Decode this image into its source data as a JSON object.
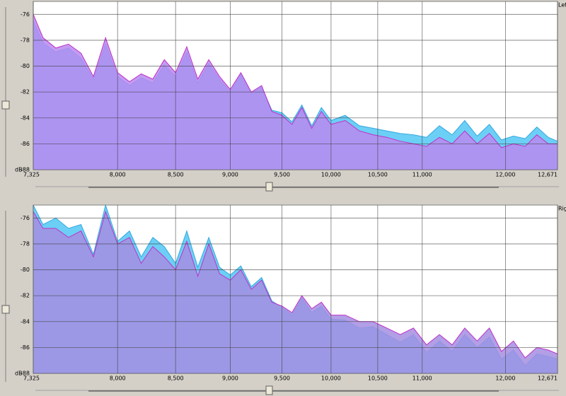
{
  "chart_data": [
    {
      "type": "area",
      "title": "Left",
      "ylabel": "dB",
      "xscale": "log",
      "grid": true,
      "xlim": [
        7325,
        12671
      ],
      "ylim": [
        -88,
        -75
      ],
      "xticks": [
        {
          "value": 7325,
          "label": "7,325"
        },
        {
          "value": 8000,
          "label": "8,000"
        },
        {
          "value": 8500,
          "label": "8,500"
        },
        {
          "value": 9000,
          "label": "9,000"
        },
        {
          "value": 9500,
          "label": "9,500"
        },
        {
          "value": 10000,
          "label": "10,000"
        },
        {
          "value": 10500,
          "label": "10,500"
        },
        {
          "value": 11000,
          "label": "11,000"
        },
        {
          "value": 12000,
          "label": "12,000"
        },
        {
          "value": 12671,
          "label": "12,671"
        }
      ],
      "yticks": [
        -88,
        -86,
        -84,
        -82,
        -80,
        -78,
        -76
      ],
      "x": [
        7325,
        7400,
        7500,
        7600,
        7700,
        7800,
        7900,
        8000,
        8100,
        8200,
        8300,
        8400,
        8500,
        8600,
        8700,
        8800,
        8900,
        9000,
        9100,
        9200,
        9300,
        9400,
        9500,
        9600,
        9700,
        9800,
        9900,
        10000,
        10150,
        10300,
        10450,
        10600,
        10750,
        10900,
        11050,
        11200,
        11350,
        11500,
        11650,
        11800,
        11950,
        12100,
        12250,
        12400,
        12550,
        12671
      ],
      "series": [
        {
          "color": "#35a8e0",
          "fill": "#6ccff5",
          "values": [
            -76.5,
            -78.2,
            -78.9,
            -78.6,
            -79.4,
            -81.0,
            -78.3,
            -80.8,
            -81.5,
            -80.9,
            -81.3,
            -79.9,
            -80.8,
            -78.9,
            -81.3,
            -79.8,
            -81.0,
            -82.0,
            -80.6,
            -82.1,
            -81.6,
            -83.4,
            -83.6,
            -84.3,
            -83.0,
            -84.6,
            -83.2,
            -84.2,
            -83.8,
            -84.6,
            -84.8,
            -85.0,
            -85.2,
            -85.3,
            -85.5,
            -84.6,
            -85.3,
            -84.2,
            -85.4,
            -84.5,
            -85.7,
            -85.4,
            -85.6,
            -84.7,
            -85.5,
            -85.8
          ]
        },
        {
          "color": "#c030c8",
          "fill": "#b98af0",
          "values": [
            -76.0,
            -77.8,
            -78.6,
            -78.3,
            -79.0,
            -80.8,
            -77.8,
            -80.5,
            -81.2,
            -80.6,
            -81.0,
            -79.5,
            -80.5,
            -78.5,
            -81.0,
            -79.5,
            -80.8,
            -81.8,
            -80.5,
            -82.0,
            -81.5,
            -83.5,
            -83.8,
            -84.5,
            -83.2,
            -84.8,
            -83.5,
            -84.5,
            -84.2,
            -85.0,
            -85.3,
            -85.5,
            -85.8,
            -86.0,
            -86.2,
            -85.5,
            -86.0,
            -85.0,
            -86.0,
            -85.2,
            -86.3,
            -86.0,
            -86.2,
            -85.3,
            -86.0,
            -86.0
          ]
        }
      ]
    },
    {
      "type": "area",
      "title": "Right",
      "ylabel": "dB",
      "xscale": "log",
      "grid": true,
      "xlim": [
        7325,
        12671
      ],
      "ylim": [
        -88,
        -75
      ],
      "xticks": [
        {
          "value": 7325,
          "label": "7,325"
        },
        {
          "value": 8000,
          "label": "8,000"
        },
        {
          "value": 8500,
          "label": "8,500"
        },
        {
          "value": 9000,
          "label": "9,000"
        },
        {
          "value": 9500,
          "label": "9,500"
        },
        {
          "value": 10000,
          "label": "10,000"
        },
        {
          "value": 10500,
          "label": "10,500"
        },
        {
          "value": 11000,
          "label": "11,000"
        },
        {
          "value": 12000,
          "label": "12,000"
        },
        {
          "value": 12671,
          "label": "12,671"
        }
      ],
      "yticks": [
        -88,
        -86,
        -84,
        -82,
        -80,
        -78,
        -76
      ],
      "x": [
        7325,
        7400,
        7500,
        7600,
        7700,
        7800,
        7900,
        8000,
        8100,
        8200,
        8300,
        8400,
        8500,
        8600,
        8700,
        8800,
        8900,
        9000,
        9100,
        9200,
        9300,
        9400,
        9500,
        9600,
        9700,
        9800,
        9900,
        10000,
        10150,
        10300,
        10450,
        10600,
        10750,
        10900,
        11050,
        11200,
        11350,
        11500,
        11650,
        11800,
        11950,
        12100,
        12250,
        12400,
        12550,
        12671
      ],
      "series": [
        {
          "color": "#35a8e0",
          "fill": "#6ccff5",
          "values": [
            -75.0,
            -76.5,
            -76.0,
            -76.8,
            -76.5,
            -78.8,
            -75.0,
            -77.8,
            -77.0,
            -79.0,
            -77.5,
            -78.2,
            -79.5,
            -77.0,
            -79.8,
            -77.5,
            -79.8,
            -80.4,
            -79.7,
            -81.3,
            -80.6,
            -82.4,
            -82.9,
            -83.5,
            -82.2,
            -83.3,
            -82.8,
            -83.8,
            -83.9,
            -84.5,
            -84.4,
            -85.0,
            -85.6,
            -85.0,
            -86.4,
            -85.5,
            -86.3,
            -85.0,
            -86.0,
            -85.2,
            -86.9,
            -86.2,
            -87.4,
            -86.5,
            -86.7,
            -86.9
          ]
        },
        {
          "color": "#c030c8",
          "fill": "#a58ee2",
          "values": [
            -75.5,
            -76.8,
            -76.8,
            -77.5,
            -77.0,
            -79.0,
            -75.5,
            -78.0,
            -77.5,
            -79.5,
            -78.2,
            -79.0,
            -80.0,
            -77.8,
            -80.5,
            -78.0,
            -80.3,
            -80.8,
            -80.0,
            -81.5,
            -80.8,
            -82.5,
            -82.8,
            -83.3,
            -82.0,
            -83.0,
            -82.5,
            -83.5,
            -83.5,
            -84.0,
            -84.0,
            -84.5,
            -85.0,
            -84.5,
            -85.8,
            -85.0,
            -85.8,
            -84.5,
            -85.5,
            -84.5,
            -86.3,
            -85.5,
            -86.8,
            -86.0,
            -86.2,
            -86.5
          ]
        }
      ]
    }
  ]
}
